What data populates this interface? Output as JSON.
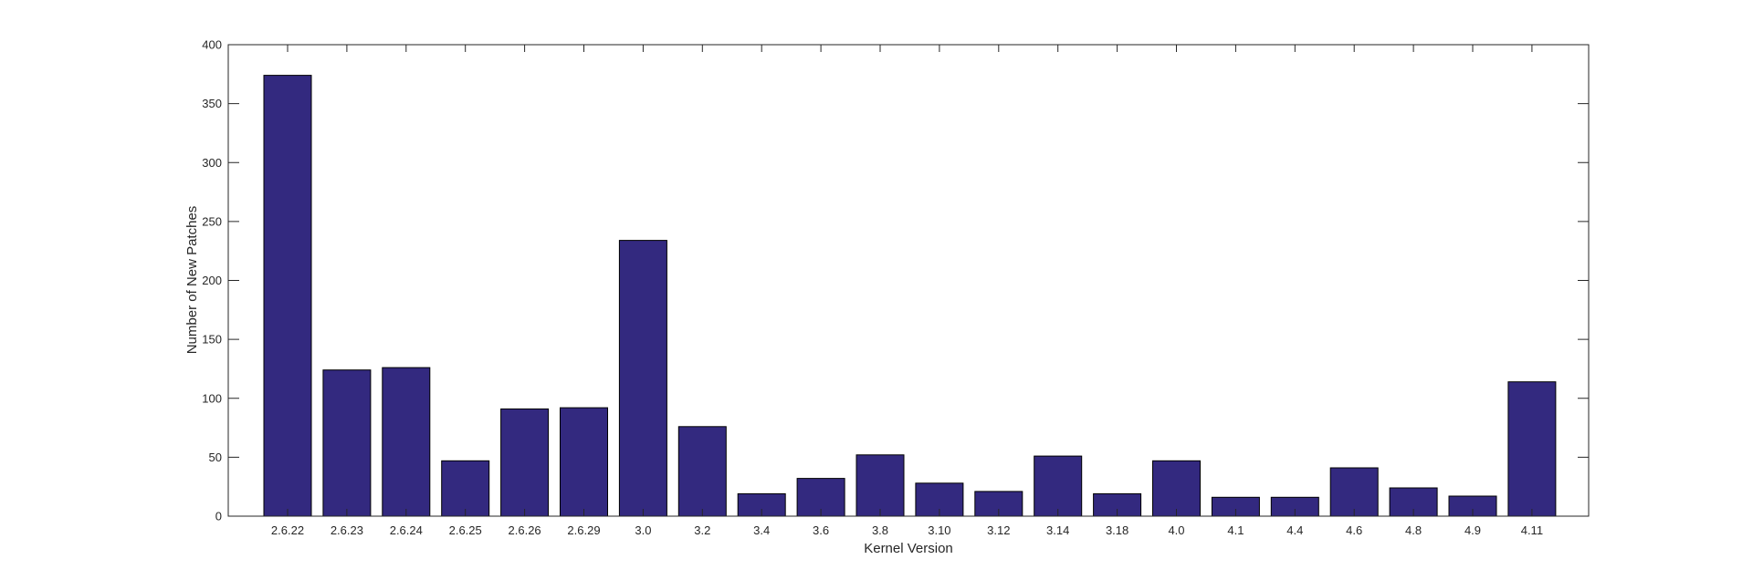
{
  "chart_data": {
    "type": "bar",
    "title": "",
    "xlabel": "Kernel Version",
    "ylabel": "Number of New Patches",
    "ylim": [
      0,
      400
    ],
    "yticks": [
      0,
      50,
      100,
      150,
      200,
      250,
      300,
      350,
      400
    ],
    "grid": false,
    "bar_color": "#33297f",
    "categories": [
      "2.6.22",
      "2.6.23",
      "2.6.24",
      "2.6.25",
      "2.6.26",
      "2.6.29",
      "3.0",
      "3.2",
      "3.4",
      "3.6",
      "3.8",
      "3.10",
      "3.12",
      "3.14",
      "3.18",
      "4.0",
      "4.1",
      "4.4",
      "4.6",
      "4.8",
      "4.9",
      "4.11"
    ],
    "values": [
      374,
      124,
      126,
      47,
      91,
      92,
      234,
      76,
      19,
      32,
      52,
      28,
      21,
      51,
      19,
      47,
      16,
      16,
      41,
      24,
      17,
      114
    ]
  }
}
